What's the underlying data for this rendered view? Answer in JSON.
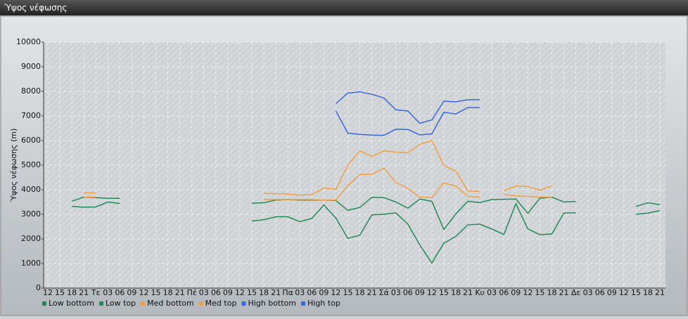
{
  "chart_data": {
    "type": "line",
    "title": "Ύψος νέφωσης",
    "y_label": "Ύψος νέφωσης (m)",
    "categories": [
      "12",
      "15",
      "18",
      "21",
      "Τε",
      "03",
      "06",
      "09",
      "12",
      "15",
      "18",
      "21",
      "Πέ",
      "03",
      "06",
      "09",
      "12",
      "15",
      "18",
      "21",
      "Πα",
      "03",
      "06",
      "09",
      "12",
      "15",
      "18",
      "21",
      "Σά",
      "03",
      "06",
      "09",
      "12",
      "15",
      "18",
      "21",
      "Κυ",
      "03",
      "06",
      "09",
      "12",
      "15",
      "18",
      "21",
      "Δε",
      "03",
      "06",
      "09",
      "12",
      "15",
      "18",
      "21"
    ],
    "ylim": [
      0,
      10000
    ],
    "yticks": [
      0,
      1000,
      2000,
      3000,
      4000,
      5000,
      6000,
      7000,
      8000,
      9000,
      10000
    ],
    "grid": true,
    "legend": "bottom",
    "series": [
      {
        "name": "Low bottom",
        "color": "#238a55",
        "values": [
          null,
          null,
          3320,
          3290,
          3300,
          3500,
          3440,
          null,
          null,
          null,
          null,
          null,
          null,
          null,
          null,
          null,
          null,
          2730,
          2780,
          2900,
          2900,
          2700,
          2830,
          3380,
          2850,
          2020,
          2150,
          2980,
          3000,
          3060,
          2600,
          1750,
          1020,
          1830,
          2100,
          2570,
          2600,
          2400,
          2180,
          3430,
          2410,
          2170,
          2200,
          3050,
          3060,
          null,
          null,
          null,
          null,
          3000,
          3050,
          3150
        ]
      },
      {
        "name": "Low top",
        "color": "#238a55",
        "values": [
          null,
          null,
          3530,
          3700,
          3680,
          3650,
          3650,
          null,
          null,
          null,
          null,
          null,
          null,
          null,
          null,
          null,
          null,
          3450,
          3470,
          3580,
          3600,
          3580,
          3580,
          3580,
          3560,
          3160,
          3280,
          3690,
          3680,
          3500,
          3250,
          3620,
          3530,
          2380,
          3020,
          3530,
          3480,
          3600,
          3610,
          3620,
          3040,
          3650,
          3700,
          3500,
          3520,
          null,
          null,
          null,
          null,
          3320,
          3470,
          3390
        ]
      },
      {
        "name": "Med bottom",
        "color": "#f0a040",
        "values": [
          null,
          null,
          null,
          3700,
          3700,
          null,
          null,
          null,
          null,
          null,
          null,
          null,
          null,
          null,
          null,
          null,
          null,
          null,
          3600,
          3600,
          3600,
          3600,
          3600,
          3580,
          3580,
          4170,
          4620,
          4620,
          4880,
          4300,
          4050,
          3700,
          3680,
          4280,
          4150,
          3730,
          3700,
          null,
          3800,
          3750,
          3730,
          3700,
          3700,
          null,
          null,
          null,
          null,
          null,
          null,
          null,
          null,
          null
        ]
      },
      {
        "name": "Med top",
        "color": "#f0a040",
        "values": [
          null,
          null,
          null,
          3870,
          3870,
          null,
          null,
          null,
          null,
          null,
          null,
          null,
          null,
          null,
          null,
          null,
          null,
          null,
          3850,
          3840,
          3830,
          3780,
          3800,
          4070,
          4010,
          5000,
          5580,
          5350,
          5580,
          5530,
          5500,
          5850,
          6000,
          4980,
          4760,
          3950,
          3930,
          null,
          3960,
          4150,
          4130,
          3980,
          4150,
          null,
          null,
          null,
          null,
          null,
          null,
          null,
          null,
          null
        ]
      },
      {
        "name": "High bottom",
        "color": "#3a68d8",
        "values": [
          null,
          null,
          null,
          null,
          null,
          null,
          null,
          null,
          null,
          null,
          null,
          null,
          null,
          null,
          null,
          null,
          null,
          null,
          null,
          null,
          null,
          null,
          null,
          null,
          7200,
          6300,
          6250,
          6220,
          6210,
          6460,
          6450,
          6230,
          6270,
          7150,
          7080,
          7340,
          7340,
          null,
          null,
          null,
          null,
          null,
          null,
          null,
          null,
          null,
          null,
          null,
          null,
          null,
          null,
          null
        ]
      },
      {
        "name": "High top",
        "color": "#3a68d8",
        "values": [
          null,
          null,
          null,
          null,
          null,
          null,
          null,
          null,
          null,
          null,
          null,
          null,
          null,
          null,
          null,
          null,
          null,
          null,
          null,
          null,
          null,
          null,
          null,
          null,
          7500,
          7930,
          7980,
          7880,
          7730,
          7250,
          7200,
          6700,
          6840,
          7600,
          7570,
          7660,
          7660,
          null,
          null,
          null,
          null,
          null,
          null,
          null,
          null,
          null,
          null,
          null,
          null,
          null,
          null,
          null
        ]
      }
    ]
  }
}
